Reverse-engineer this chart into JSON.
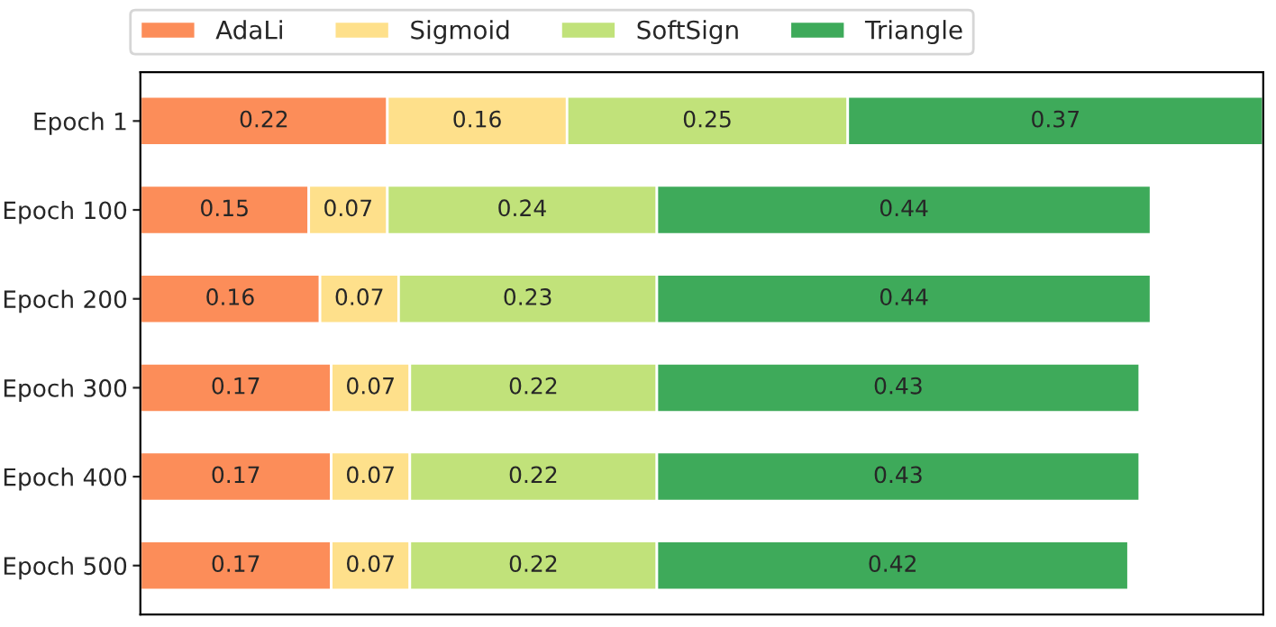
{
  "chart_data": {
    "type": "bar",
    "orientation": "horizontal",
    "stacked": true,
    "data_labels": true,
    "legend": "top",
    "tick_labels": "y",
    "grid": false,
    "xlim": [
      0,
      1
    ],
    "categories": [
      "Epoch 1",
      "Epoch 100",
      "Epoch 200",
      "Epoch 300",
      "Epoch 400",
      "Epoch 500"
    ],
    "series": [
      {
        "name": "AdaLi",
        "color": "#fc8d59",
        "values": [
          0.22,
          0.15,
          0.16,
          0.17,
          0.17,
          0.17
        ]
      },
      {
        "name": "Sigmoid",
        "color": "#fee08b",
        "values": [
          0.16,
          0.07,
          0.07,
          0.07,
          0.07,
          0.07
        ]
      },
      {
        "name": "SoftSign",
        "color": "#c1e27a",
        "values": [
          0.25,
          0.24,
          0.23,
          0.22,
          0.22,
          0.22
        ]
      },
      {
        "name": "Triangle",
        "color": "#3eaa5a",
        "values": [
          0.37,
          0.44,
          0.44,
          0.43,
          0.43,
          0.42
        ]
      }
    ]
  }
}
